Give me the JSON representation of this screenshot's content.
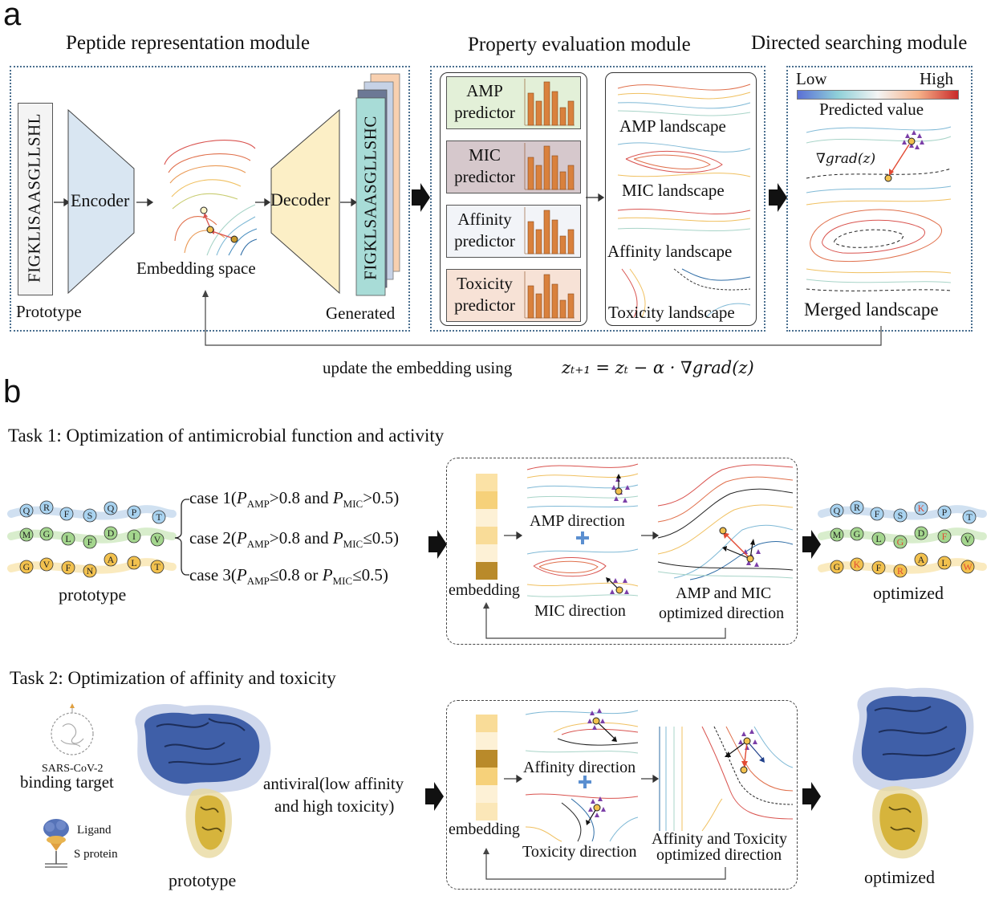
{
  "panel_a": {
    "letter": "a",
    "modules": {
      "representation": "Peptide representation module",
      "evaluation": "Property evaluation module",
      "searching": "Directed searching module"
    },
    "prototype_seq": "FIGKLISAASGLLSHL",
    "generated_seq": "FIGKLSAASGLLSHC",
    "prototype_label": "Prototype",
    "generated_label": "Generated",
    "encoder": "Encoder",
    "decoder": "Decoder",
    "embedding_space": "Embedding space",
    "predictors": [
      {
        "line1": "AMP",
        "line2": "predictor",
        "bg": "#e3f0d8"
      },
      {
        "line1": "MIC",
        "line2": "predictor",
        "bg": "#d6c8cc"
      },
      {
        "line1": "Affinity",
        "line2": "predictor",
        "bg": "#f2f4f8"
      },
      {
        "line1": "Toxicity",
        "line2": "predictor",
        "bg": "#f7e2d6"
      }
    ],
    "landscapes": [
      "AMP landscape",
      "MIC landscape",
      "Affinity landscape",
      "Toxicity landscape"
    ],
    "colorbar": {
      "low": "Low",
      "high": "High",
      "label": "Predicted value"
    },
    "grad_label": "∇grad(z)",
    "merged": "Merged landscape",
    "update_text": "update the embedding using",
    "update_formula": "zₜ₊₁ = zₜ − α · ∇grad(z)"
  },
  "panel_b": {
    "letter": "b",
    "task1": {
      "title": "Task 1: Optimization of antimicrobial function and activity",
      "proto_rows": [
        [
          "Q",
          "R",
          "F",
          "S",
          "Q",
          "P",
          "T"
        ],
        [
          "M",
          "G",
          "L",
          "F",
          "D",
          "I",
          "V"
        ],
        [
          "G",
          "V",
          "F",
          "N",
          "A",
          "L",
          "T"
        ]
      ],
      "opt_rows": [
        [
          "Q",
          "R",
          "F",
          "S",
          "K",
          "P",
          "T"
        ],
        [
          "M",
          "G",
          "L",
          "G",
          "D",
          "F",
          "V"
        ],
        [
          "G",
          "K",
          "F",
          "R",
          "A",
          "L",
          "W"
        ]
      ],
      "prototype_label": "prototype",
      "optimized_label": "optimized",
      "cases": [
        "case 1(P_AMP>0.8 and P_MIC>0.5)",
        "case 2(P_AMP>0.8 and P_MIC≤0.5)",
        "case 3(P_AMP≤0.8 or P_MIC≤0.5)"
      ],
      "embedding": "embedding",
      "dir1": "AMP direction",
      "dir2": "MIC direction",
      "combined1": "AMP and MIC",
      "combined2": "optimized direction"
    },
    "task2": {
      "title": "Task 2: Optimization of  affinity and toxicity",
      "virus_label": "SARS-CoV-2",
      "binding_target": "binding target",
      "ligand": "Ligand",
      "s_protein": "S protein",
      "prototype_label": "prototype",
      "optimized_label": "optimized",
      "antiviral1": "antiviral(low affinity",
      "antiviral2": "and high toxicity)",
      "embedding": "embedding",
      "dir1": "Affinity direction",
      "dir2": "Toxicity direction",
      "combined1": "Affinity and Toxicity",
      "combined2": "optimized direction"
    }
  },
  "colors": {
    "dotted_border": "#4a6f8f",
    "encoder": "#d9e6f2",
    "decoder": "#fcefc6",
    "bar": "#d9813d",
    "optimized_red": "#e24a33"
  }
}
